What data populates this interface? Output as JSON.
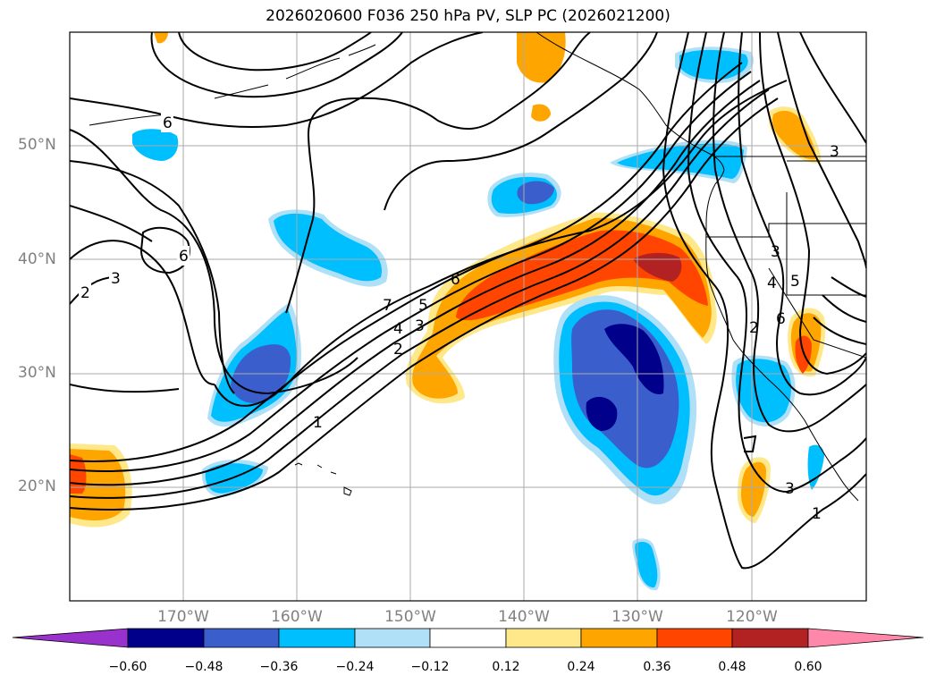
{
  "title": "2026020600 F036 250 hPa PV, SLP PC (2026021200)",
  "latitude_labels": [
    "50°N",
    "40°N",
    "30°N",
    "20°N"
  ],
  "longitude_labels": [
    "170°W",
    "160°W",
    "150°W",
    "140°W",
    "130°W",
    "120°W"
  ],
  "colorbar": {
    "ticks": [
      "−0.60",
      "−0.48",
      "−0.36",
      "−0.24",
      "−0.12",
      "0.12",
      "0.24",
      "0.36",
      "0.48",
      "0.60"
    ],
    "colors": [
      "#9932cc",
      "#00008b",
      "#3a5fcd",
      "#00bfff",
      "#b0e0f8",
      "#ffffff",
      "#ffe88a",
      "#ffa500",
      "#ff4500",
      "#b22222",
      "#ff88aa"
    ]
  },
  "contour_labels": [
    "2",
    "3",
    "6",
    "6",
    "6",
    "7",
    "5",
    "4",
    "3",
    "2",
    "1",
    "3",
    "3",
    "5",
    "4",
    "6",
    "2",
    "3",
    "1"
  ],
  "colors": {
    "grid": "#aaaaaa",
    "contour": "#000000",
    "coast": "#000000"
  }
}
